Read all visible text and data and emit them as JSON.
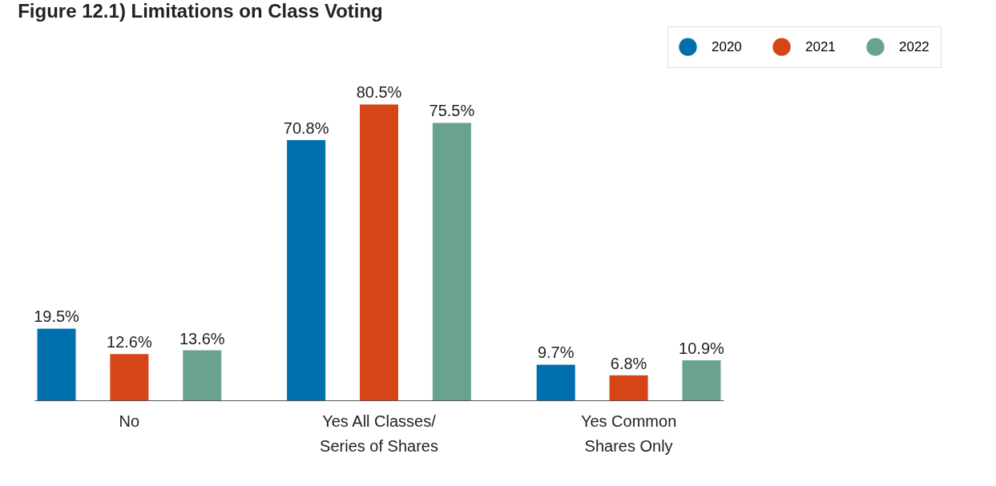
{
  "chart_data": {
    "type": "bar",
    "title": "Figure 12.1) Limitations on Class Voting",
    "categories": [
      "No",
      "Yes All Classes/ Series of Shares",
      "Yes Common Shares Only"
    ],
    "series": [
      {
        "name": "2020",
        "color": "#006fad",
        "values": [
          19.5,
          70.8,
          9.7
        ],
        "value_labels": [
          "19.5%",
          "70.8%",
          "9.7%"
        ]
      },
      {
        "name": "2021",
        "color": "#d64516",
        "values": [
          12.6,
          80.5,
          6.8
        ],
        "value_labels": [
          "12.6%",
          "80.5%",
          "6.8%"
        ]
      },
      {
        "name": "2022",
        "color": "#6aa291",
        "values": [
          13.6,
          75.5,
          10.9
        ],
        "value_labels": [
          "13.6%",
          "75.5%",
          "10.9%"
        ]
      }
    ],
    "legend": "top right",
    "grid": false
  }
}
